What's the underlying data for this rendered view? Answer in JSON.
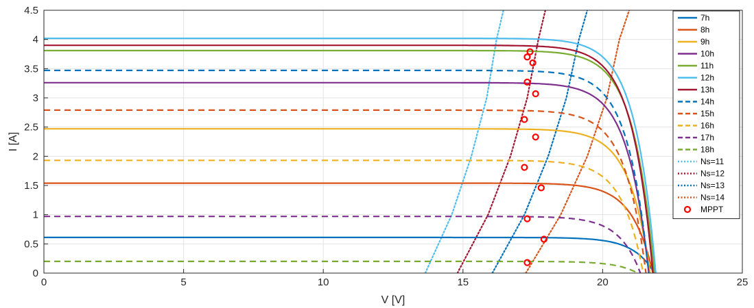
{
  "chart_data": {
    "type": "line",
    "xlabel": "V [V]",
    "ylabel": "I [A]",
    "xlim": [
      0,
      25
    ],
    "ylim": [
      0,
      4.5
    ],
    "xticks": [
      0,
      5,
      10,
      15,
      20,
      25
    ],
    "yticks": [
      0,
      0.5,
      1,
      1.5,
      2,
      2.5,
      3,
      3.5,
      4,
      4.5
    ],
    "grid": true,
    "legend_position": "top-right",
    "legend": [
      "7h",
      "8h",
      "9h",
      "10h",
      "11h",
      "12h",
      "13h",
      "14h",
      "15h",
      "16h",
      "17h",
      "18h",
      "Ns=11",
      "Ns=12",
      "Ns=13",
      "Ns=14",
      "MPPT"
    ],
    "iv_curves": [
      {
        "name": "7h",
        "isc": 0.61,
        "voc": 21.85,
        "style": "solid",
        "color": "#0072BD"
      },
      {
        "name": "8h",
        "isc": 1.54,
        "voc": 21.8,
        "style": "solid",
        "color": "#D95319"
      },
      {
        "name": "9h",
        "isc": 2.47,
        "voc": 21.7,
        "style": "solid",
        "color": "#EDB120"
      },
      {
        "name": "10h",
        "isc": 3.26,
        "voc": 21.65,
        "style": "solid",
        "color": "#7E2F8E"
      },
      {
        "name": "11h",
        "isc": 3.81,
        "voc": 21.85,
        "style": "solid",
        "color": "#77AC30"
      },
      {
        "name": "12h",
        "isc": 4.02,
        "voc": 21.9,
        "style": "solid",
        "color": "#4DBEEE"
      },
      {
        "name": "13h",
        "isc": 3.9,
        "voc": 21.8,
        "style": "solid",
        "color": "#A2142F"
      },
      {
        "name": "14h",
        "isc": 3.47,
        "voc": 21.65,
        "style": "dashed",
        "color": "#0072BD"
      },
      {
        "name": "15h",
        "isc": 2.79,
        "voc": 21.55,
        "style": "dashed",
        "color": "#D95319"
      },
      {
        "name": "16h",
        "isc": 1.93,
        "voc": 21.45,
        "style": "dashed",
        "color": "#EDB120"
      },
      {
        "name": "17h",
        "isc": 0.97,
        "voc": 21.35,
        "style": "dashed",
        "color": "#7E2F8E"
      },
      {
        "name": "18h",
        "isc": 0.2,
        "voc": 21.25,
        "style": "dashed",
        "color": "#77AC30"
      }
    ],
    "load_lines": [
      {
        "name": "Ns=11",
        "points": [
          [
            13.65,
            0
          ],
          [
            14.6,
            1.0
          ],
          [
            15.3,
            2.0
          ],
          [
            15.85,
            3.0
          ],
          [
            16.2,
            4.0
          ],
          [
            16.45,
            4.5
          ]
        ],
        "style": "dotted",
        "color": "#4DBEEE"
      },
      {
        "name": "Ns=12",
        "points": [
          [
            14.8,
            0
          ],
          [
            15.9,
            1.0
          ],
          [
            16.7,
            2.0
          ],
          [
            17.3,
            3.0
          ],
          [
            17.7,
            4.0
          ],
          [
            17.95,
            4.5
          ]
        ],
        "style": "dotted",
        "color": "#A2142F"
      },
      {
        "name": "Ns=13",
        "points": [
          [
            16.05,
            0
          ],
          [
            17.2,
            1.0
          ],
          [
            18.05,
            2.0
          ],
          [
            18.7,
            3.0
          ],
          [
            19.15,
            4.0
          ],
          [
            19.45,
            4.5
          ]
        ],
        "style": "dotted",
        "color": "#0072BD"
      },
      {
        "name": "Ns=14",
        "points": [
          [
            17.25,
            0
          ],
          [
            18.5,
            1.0
          ],
          [
            19.45,
            2.0
          ],
          [
            20.15,
            3.0
          ],
          [
            20.6,
            4.0
          ],
          [
            20.95,
            4.5
          ]
        ],
        "style": "dotted",
        "color": "#D95319"
      }
    ],
    "mppt": [
      [
        17.3,
        0.18
      ],
      [
        17.3,
        0.93
      ],
      [
        17.2,
        1.81
      ],
      [
        17.2,
        2.63
      ],
      [
        17.3,
        3.27
      ],
      [
        17.3,
        3.7
      ],
      [
        17.4,
        3.79
      ],
      [
        17.5,
        3.6
      ],
      [
        17.6,
        3.07
      ],
      [
        17.6,
        2.33
      ],
      [
        17.8,
        1.46
      ],
      [
        17.9,
        0.58
      ]
    ],
    "mppt_color": "#FF0000"
  }
}
